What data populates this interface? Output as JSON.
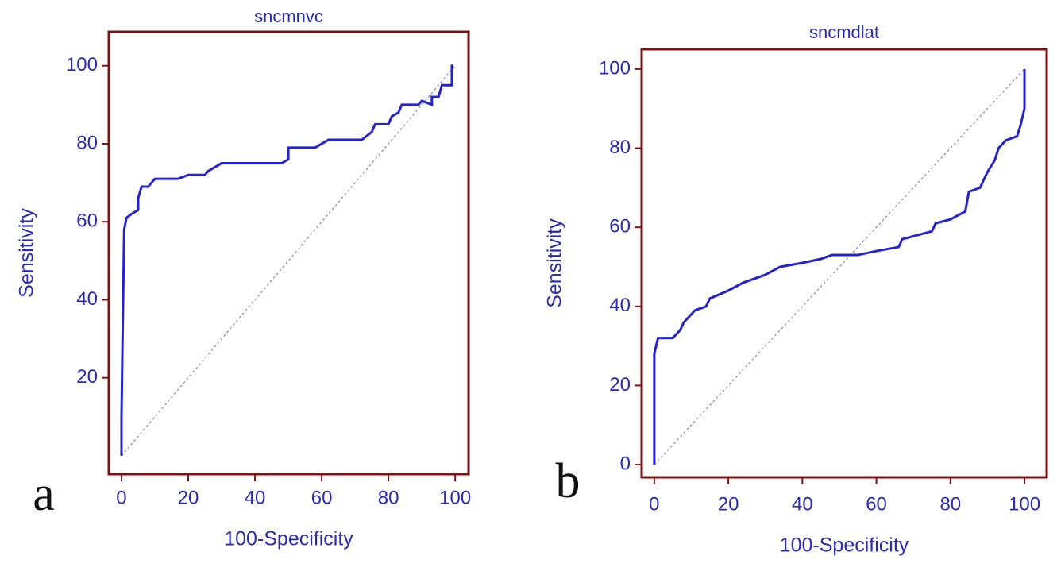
{
  "chart_data": [
    {
      "type": "line",
      "title": "sncmnvc",
      "panel_label": "a",
      "xlabel": "100-Specificity",
      "ylabel": "Sensitivity",
      "xlim": [
        -3.8,
        104
      ],
      "ylim": [
        -4.7,
        108.7
      ],
      "xticks": [
        0,
        20,
        40,
        60,
        80,
        100
      ],
      "yticks": [
        20,
        40,
        60,
        80,
        100
      ],
      "frame_color": "#7a1414",
      "reference_line": {
        "x": [
          0,
          100
        ],
        "y": [
          0,
          100
        ]
      },
      "series": [
        {
          "color": "#2323d2",
          "x": [
            0,
            0,
            0.3,
            0.5,
            0.8,
            1.5,
            3,
            5,
            5,
            6,
            8,
            9,
            10,
            17,
            20,
            25,
            26,
            28,
            30,
            48,
            50,
            50,
            58,
            60,
            62,
            72,
            75,
            76,
            80,
            81,
            83,
            84,
            89,
            90,
            93,
            93,
            95,
            96,
            99,
            99,
            99.5
          ],
          "values": [
            0,
            10,
            29,
            40,
            58,
            61,
            62,
            63,
            66,
            69,
            69,
            70,
            71,
            71,
            72,
            72,
            73,
            74,
            75,
            75,
            76,
            79,
            79,
            80,
            81,
            81,
            83,
            85,
            85,
            87,
            88,
            90,
            90,
            91,
            90,
            92,
            92,
            95,
            95,
            100,
            100
          ]
        }
      ]
    },
    {
      "type": "line",
      "title": "sncmdlat",
      "panel_label": "b",
      "xlabel": "100-Specificity",
      "ylabel": "Sensitivity",
      "xlim": [
        -3.4,
        106
      ],
      "ylim": [
        -3.2,
        105
      ],
      "xticks": [
        0,
        20,
        40,
        60,
        80,
        100
      ],
      "yticks": [
        0,
        20,
        40,
        60,
        80,
        100
      ],
      "frame_color": "#7a1414",
      "reference_line": {
        "x": [
          0,
          100
        ],
        "y": [
          0,
          100
        ]
      },
      "series": [
        {
          "color": "#2323d2",
          "x": [
            0,
            0,
            0.5,
            1,
            5,
            7,
            8,
            10,
            11,
            14,
            15,
            20,
            24,
            30,
            34,
            40,
            45,
            48,
            55,
            60,
            66,
            67,
            75,
            76,
            80,
            84,
            85,
            88,
            90,
            92,
            93,
            95,
            98,
            99,
            100,
            100
          ],
          "values": [
            0,
            28,
            30,
            32,
            32,
            34,
            36,
            38,
            39,
            40,
            42,
            44,
            46,
            48,
            50,
            51,
            52,
            53,
            53,
            54,
            55,
            57,
            59,
            61,
            62,
            64,
            69,
            70,
            74,
            77,
            80,
            82,
            83,
            86,
            90,
            100
          ]
        }
      ]
    }
  ]
}
